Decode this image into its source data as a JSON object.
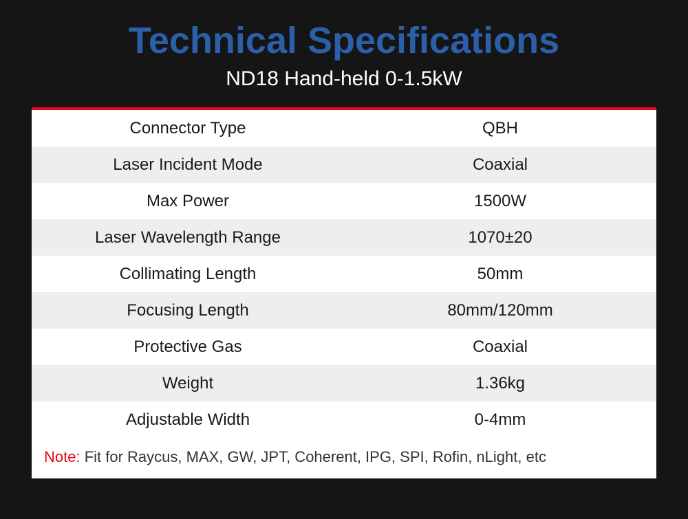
{
  "header": {
    "title": "Technical Specifications",
    "subtitle": "ND18 Hand-held 0-1.5kW"
  },
  "table": {
    "type": "table",
    "background_color": "#ffffff",
    "top_border_color": "#e30613",
    "row_alt_color": "#eeeeee",
    "text_color": "#1a1a1a",
    "fontsize": 24,
    "rows": [
      {
        "label": "Connector Type",
        "value": "QBH"
      },
      {
        "label": "Laser Incident Mode",
        "value": "Coaxial"
      },
      {
        "label": "Max Power",
        "value": "1500W"
      },
      {
        "label": "Laser Wavelength Range",
        "value": "1070±20"
      },
      {
        "label": "Collimating Length",
        "value": "50mm"
      },
      {
        "label": "Focusing Length",
        "value": "80mm/120mm"
      },
      {
        "label": "Protective Gas",
        "value": "Coaxial"
      },
      {
        "label": "Weight",
        "value": "1.36kg"
      },
      {
        "label": "Adjustable Width",
        "value": "0-4mm"
      }
    ]
  },
  "note": {
    "label": "Note:",
    "text": " Fit for Raycus, MAX, GW, JPT, Coherent, IPG, SPI, Rofin, nLight, etc",
    "label_color": "#e30613"
  },
  "colors": {
    "page_background": "#151515",
    "title_color": "#2b5fa8",
    "subtitle_color": "#ffffff"
  }
}
